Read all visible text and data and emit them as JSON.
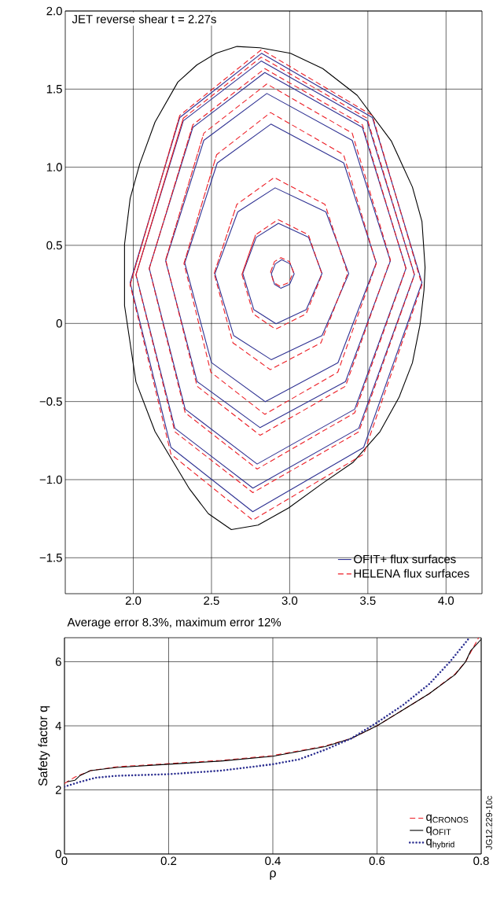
{
  "chart_data": [
    {
      "type": "line",
      "title": "JET reverse shear t = 2.27s",
      "xlim": [
        1.565,
        4.23
      ],
      "ylim": [
        -1.73,
        2.0
      ],
      "xticks": [
        {
          "value": 2,
          "label": "2.0"
        },
        {
          "value": 2.5,
          "label": "2.5"
        },
        {
          "value": 3,
          "label": "3.0"
        },
        {
          "value": 3.5,
          "label": "3.5"
        },
        {
          "value": 4,
          "label": "4.0"
        }
      ],
      "yticks": [
        {
          "value": -1.5,
          "label": "−1.5"
        },
        {
          "value": -1,
          "label": "−1.0"
        },
        {
          "value": -0.5,
          "label": "−0.5"
        },
        {
          "value": 0,
          "label": "0"
        },
        {
          "value": 0.5,
          "label": "0.5"
        },
        {
          "value": 1,
          "label": "1.0"
        },
        {
          "value": 1.5,
          "label": "1.5"
        },
        {
          "value": 2,
          "label": "2.0"
        }
      ],
      "grid": true,
      "legend": "bottom right",
      "series": [
        {
          "color": "#000000",
          "line_style": "solid",
          "x": [
            2.663,
            2.81,
            3.005,
            3.212,
            3.432,
            3.651,
            3.785,
            3.846,
            3.866,
            3.859,
            3.834,
            3.785,
            3.7,
            3.578,
            3.407,
            3.212,
            2.993,
            2.798,
            2.627,
            2.48,
            2.359,
            2.139,
            2.017,
            1.944,
            1.944,
            1.98,
            2.041,
            2.139,
            2.285,
            2.407,
            2.529,
            2.663,
            2.81
          ],
          "values": [
            1.773,
            1.765,
            1.729,
            1.631,
            1.46,
            1.166,
            0.873,
            0.653,
            0.359,
            0.213,
            -0.007,
            -0.252,
            -0.472,
            -0.692,
            -0.888,
            -1.022,
            -1.181,
            -1.291,
            -1.32,
            -1.218,
            -1.059,
            -0.692,
            -0.374,
            0.115,
            0.506,
            0.8,
            1.02,
            1.289,
            1.545,
            1.655,
            1.729,
            1.773,
            1.765
          ]
        },
        {
          "name": "OFIT+ flux surfaces",
          "color": "#2e3192",
          "line_style": "solid",
          "x": [
            2.883,
            2.908,
            2.949,
            3.004,
            3.029,
            3.0,
            2.944,
            2.903,
            2.883,
            2.908
          ],
          "values": [
            0.317,
            0.381,
            0.408,
            0.381,
            0.317,
            0.251,
            0.225,
            0.251,
            0.317,
            0.381
          ]
        },
        {
          "color": "#2e3192",
          "line_style": "solid",
          "x": [
            2.7,
            2.786,
            2.928,
            3.121,
            3.207,
            3.106,
            2.913,
            2.771,
            2.7,
            2.786
          ],
          "values": [
            0.32,
            0.551,
            0.641,
            0.551,
            0.32,
            0.088,
            -0.002,
            0.088,
            0.32,
            0.551
          ]
        },
        {
          "color": "#2e3192",
          "line_style": "solid",
          "x": [
            2.522,
            2.668,
            2.907,
            3.232,
            3.378,
            3.207,
            2.882,
            2.642,
            2.522,
            2.668
          ],
          "values": [
            0.318,
            0.714,
            0.868,
            0.714,
            0.318,
            -0.078,
            -0.232,
            -0.078,
            0.318,
            0.714
          ]
        },
        {
          "color": "#2e3192",
          "line_style": "solid",
          "x": [
            2.329,
            2.537,
            2.88,
            3.346,
            3.554,
            3.309,
            2.844,
            2.5,
            2.329,
            2.537
          ],
          "values": [
            0.388,
            1.027,
            1.276,
            1.027,
            0.388,
            -0.251,
            -0.501,
            -0.251,
            0.388,
            1.027
          ]
        },
        {
          "color": "#2e3192",
          "line_style": "solid",
          "x": [
            2.207,
            2.451,
            2.854,
            3.4,
            3.644,
            3.357,
            2.811,
            2.408,
            2.207,
            2.451
          ],
          "values": [
            0.4,
            1.172,
            1.472,
            1.172,
            0.4,
            -0.372,
            -0.667,
            -0.372,
            0.4,
            1.172
          ]
        },
        {
          "color": "#2e3192",
          "line_style": "solid",
          "x": [
            2.102,
            2.381,
            2.841,
            3.465,
            3.744,
            3.416,
            2.792,
            2.332,
            2.102,
            2.381
          ],
          "values": [
            0.353,
            1.255,
            1.606,
            1.255,
            0.353,
            -0.549,
            -0.9,
            -0.549,
            0.353,
            1.255
          ]
        },
        {
          "color": "#2e3192",
          "line_style": "solid",
          "x": [
            2.017,
            2.32,
            2.818,
            3.495,
            3.798,
            3.442,
            2.765,
            2.266,
            2.017,
            2.32
          ],
          "values": [
            0.313,
            1.297,
            1.68,
            1.297,
            0.313,
            -0.671,
            -1.054,
            -0.671,
            0.313,
            1.297
          ]
        },
        {
          "color": "#2e3192",
          "line_style": "solid",
          "x": [
            1.98,
            2.297,
            2.82,
            3.529,
            3.846,
            3.473,
            2.764,
            2.241,
            1.98,
            2.297
          ],
          "values": [
            0.262,
            1.318,
            1.729,
            1.318,
            0.262,
            -0.794,
            -1.205,
            -0.794,
            0.262,
            1.318
          ]
        },
        {
          "name": "HELENA flux surfaces",
          "color": "#ed1c24",
          "line_style": "dashed",
          "x": [
            2.878,
            2.903,
            2.944,
            2.999,
            3.024,
            2.995,
            2.939,
            2.898,
            2.878,
            2.903
          ],
          "values": [
            0.329,
            0.396,
            0.421,
            0.396,
            0.329,
            0.262,
            0.237,
            0.262,
            0.329,
            0.396
          ]
        },
        {
          "color": "#ed1c24",
          "line_style": "dashed",
          "x": [
            2.695,
            2.782,
            2.925,
            3.12,
            3.207,
            3.105,
            2.91,
            2.767,
            2.695,
            2.782
          ],
          "values": [
            0.314,
            0.567,
            0.665,
            0.567,
            0.314,
            0.061,
            -0.037,
            0.061,
            0.314,
            0.567
          ]
        },
        {
          "color": "#ed1c24",
          "line_style": "dashed",
          "x": [
            2.517,
            2.662,
            2.901,
            3.226,
            3.371,
            3.2,
            2.876,
            2.637,
            2.517,
            2.662
          ],
          "values": [
            0.319,
            0.762,
            0.934,
            0.762,
            0.319,
            -0.124,
            -0.296,
            -0.124,
            0.319,
            0.762
          ]
        },
        {
          "color": "#ed1c24",
          "line_style": "dashed",
          "x": [
            2.324,
            2.533,
            2.878,
            3.345,
            3.554,
            3.308,
            2.841,
            2.496,
            2.324,
            2.533
          ],
          "values": [
            0.384,
            1.08,
            1.35,
            1.08,
            0.384,
            -0.312,
            -0.582,
            -0.312,
            0.384,
            1.08
          ]
        },
        {
          "color": "#ed1c24",
          "line_style": "dashed",
          "x": [
            2.207,
            2.451,
            2.854,
            3.4,
            3.644,
            3.357,
            2.811,
            2.408,
            2.207,
            2.451
          ],
          "values": [
            0.408,
            1.218,
            1.533,
            1.218,
            0.408,
            -0.402,
            -0.716,
            -0.402,
            0.408,
            1.218
          ]
        },
        {
          "color": "#ed1c24",
          "line_style": "dashed",
          "x": [
            2.102,
            2.381,
            2.841,
            3.465,
            3.744,
            3.416,
            2.792,
            2.332,
            2.102,
            2.381
          ],
          "values": [
            0.35,
            1.272,
            1.631,
            1.272,
            0.35,
            -0.572,
            -0.932,
            -0.572,
            0.35,
            1.272
          ]
        },
        {
          "color": "#ed1c24",
          "line_style": "dashed",
          "x": [
            2.017,
            2.32,
            2.818,
            3.495,
            3.798,
            3.442,
            2.765,
            2.266,
            2.017,
            2.32
          ],
          "values": [
            0.31,
            1.314,
            1.704,
            1.314,
            0.31,
            -0.694,
            -1.083,
            -0.694,
            0.31,
            1.314
          ]
        },
        {
          "color": "#ed1c24",
          "line_style": "dashed",
          "x": [
            1.98,
            2.297,
            2.82,
            3.529,
            3.846,
            3.473,
            2.764,
            2.241,
            1.98,
            2.297
          ],
          "values": [
            0.247,
            1.331,
            1.753,
            1.331,
            0.247,
            -0.837,
            -1.259,
            -0.837,
            0.247,
            1.331
          ]
        }
      ]
    },
    {
      "type": "line",
      "title": "Average error 8.3%, maximum error 12%",
      "xlabel": "ρ",
      "ylabel": "Safety factor q",
      "annotations": [
        "JG12.229-10c"
      ],
      "xlim": [
        0,
        0.8
      ],
      "ylim": [
        0,
        6.75
      ],
      "xticks": [
        0,
        0.2,
        0.4,
        0.6,
        0.8
      ],
      "yticks": [
        0,
        2,
        4,
        6
      ],
      "grid": true,
      "legend": "bottom right",
      "series": [
        {
          "name": "q$_{CRONOS}$",
          "color": "#ed1c24",
          "line_style": "dashed",
          "x": [
            0,
            0.02,
            0.05,
            0.1,
            0.2,
            0.3,
            0.4,
            0.5,
            0.55,
            0.6,
            0.65,
            0.7,
            0.75,
            0.77,
            0.795
          ],
          "values": [
            2.2,
            2.4,
            2.6,
            2.72,
            2.82,
            2.92,
            3.07,
            3.37,
            3.6,
            4.0,
            4.5,
            5.0,
            5.62,
            6.0,
            6.75
          ]
        },
        {
          "name": "q$_{OFIT}$",
          "color": "#000000",
          "line_style": "solid",
          "x": [
            0.005,
            0.02,
            0.03,
            0.05,
            0.1,
            0.2,
            0.3,
            0.4,
            0.5,
            0.55,
            0.6,
            0.65,
            0.7,
            0.75,
            0.77,
            0.78,
            0.8
          ],
          "values": [
            2.25,
            2.3,
            2.45,
            2.6,
            2.7,
            2.8,
            2.9,
            3.05,
            3.35,
            3.6,
            4.0,
            4.5,
            5.0,
            5.6,
            6.0,
            6.35,
            6.7
          ]
        },
        {
          "name": "q$_{hybrid}$",
          "color": "#2e3192",
          "line_style": "dotted",
          "x": [
            0,
            0.03,
            0.06,
            0.1,
            0.2,
            0.3,
            0.4,
            0.45,
            0.5,
            0.55,
            0.6,
            0.65,
            0.7,
            0.74,
            0.775
          ],
          "values": [
            2.1,
            2.25,
            2.38,
            2.44,
            2.49,
            2.6,
            2.8,
            2.95,
            3.25,
            3.6,
            4.1,
            4.65,
            5.3,
            6.0,
            6.7
          ]
        }
      ]
    }
  ]
}
